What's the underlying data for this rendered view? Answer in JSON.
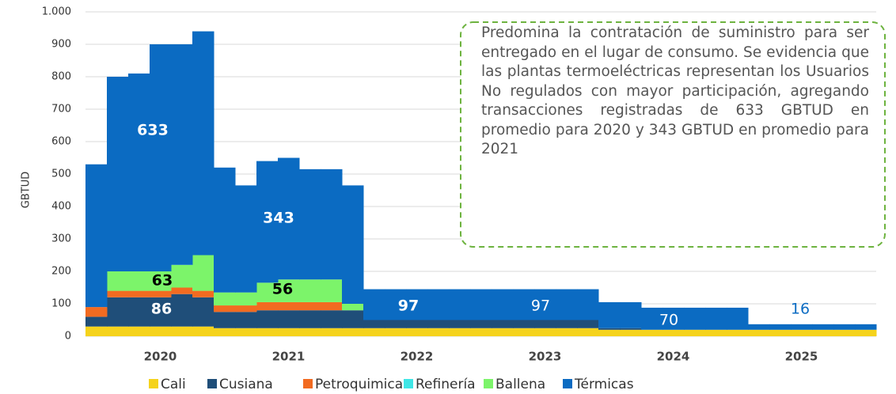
{
  "chart_data": {
    "type": "stacked_area",
    "y_label": "GBTUD",
    "categories": [
      null,
      null,
      null,
      "2020",
      null,
      null,
      null,
      null,
      null,
      "2021",
      null,
      null,
      null,
      null,
      null,
      "2022",
      null,
      null,
      null,
      null,
      null,
      "2023",
      null,
      null,
      null,
      null,
      null,
      "2024",
      null,
      null,
      null,
      null,
      null,
      "2025",
      null,
      null,
      null
    ],
    "ylim": [
      0,
      1000
    ],
    "yticks": [
      0,
      100,
      200,
      300,
      400,
      500,
      600,
      700,
      800,
      900,
      {
        "value": 1000,
        "label": "1.000"
      }
    ],
    "grid": true,
    "legend": "bottom",
    "series": [
      {
        "name": "Cali",
        "color": "#f5d31c",
        "values": [
          30,
          30,
          30,
          30,
          30,
          30,
          25,
          25,
          25,
          25,
          25,
          25,
          25,
          25,
          25,
          25,
          25,
          25,
          25,
          25,
          25,
          25,
          25,
          25,
          20,
          20,
          20,
          20,
          20,
          20,
          20,
          20,
          20,
          20,
          20,
          20,
          20
        ]
      },
      {
        "name": "Cusiana",
        "color": "#1f4e79",
        "values": [
          30,
          90,
          90,
          90,
          100,
          90,
          50,
          50,
          55,
          55,
          55,
          55,
          55,
          25,
          25,
          25,
          25,
          25,
          25,
          25,
          25,
          25,
          25,
          25,
          5,
          5,
          0,
          0,
          0,
          0,
          0,
          0,
          0,
          0,
          0,
          0,
          0
        ]
      },
      {
        "name": "Petroquimica",
        "color": "#f26b21",
        "values": [
          30,
          20,
          20,
          20,
          20,
          20,
          20,
          20,
          25,
          25,
          25,
          25,
          0,
          0,
          0,
          0,
          0,
          0,
          0,
          0,
          0,
          0,
          0,
          0,
          0,
          0,
          0,
          0,
          0,
          0,
          0,
          0,
          0,
          0,
          0,
          0,
          0
        ]
      },
      {
        "name": "Refinería",
        "color": "#3fe6e6",
        "values": [
          0,
          0,
          0,
          0,
          0,
          0,
          0,
          0,
          0,
          0,
          0,
          0,
          0,
          0,
          0,
          0,
          0,
          0,
          0,
          0,
          0,
          0,
          0,
          0,
          0,
          0,
          0,
          0,
          0,
          0,
          0,
          0,
          0,
          0,
          0,
          0,
          0
        ]
      },
      {
        "name": "Ballena",
        "color": "#7cf46a",
        "values": [
          0,
          60,
          60,
          60,
          70,
          110,
          40,
          40,
          60,
          70,
          70,
          70,
          20,
          0,
          0,
          0,
          0,
          0,
          0,
          0,
          0,
          0,
          0,
          0,
          0,
          0,
          0,
          0,
          0,
          0,
          0,
          0,
          0,
          0,
          0,
          0,
          0
        ]
      },
      {
        "name": "Térmicas",
        "color": "#0b6bc2",
        "values": [
          440,
          600,
          610,
          700,
          680,
          690,
          385,
          330,
          375,
          375,
          340,
          340,
          365,
          95,
          95,
          95,
          95,
          95,
          95,
          95,
          95,
          95,
          95,
          95,
          80,
          80,
          68,
          68,
          68,
          68,
          68,
          17,
          17,
          17,
          17,
          17,
          17
        ]
      }
    ],
    "annotations": [
      "633",
      "343",
      "63",
      "56",
      "86",
      "97",
      "97",
      "70",
      "16"
    ],
    "callout": "Predomina la contratación de suministro para ser entregado en el lugar de consumo. Se evidencia que las plantas termoeléctricas representan los Usuarios No regulados con mayor participación, agregando transacciones registradas de 633 GBTUD en promedio para 2020 y 343 GBTUD en promedio para 2021"
  }
}
